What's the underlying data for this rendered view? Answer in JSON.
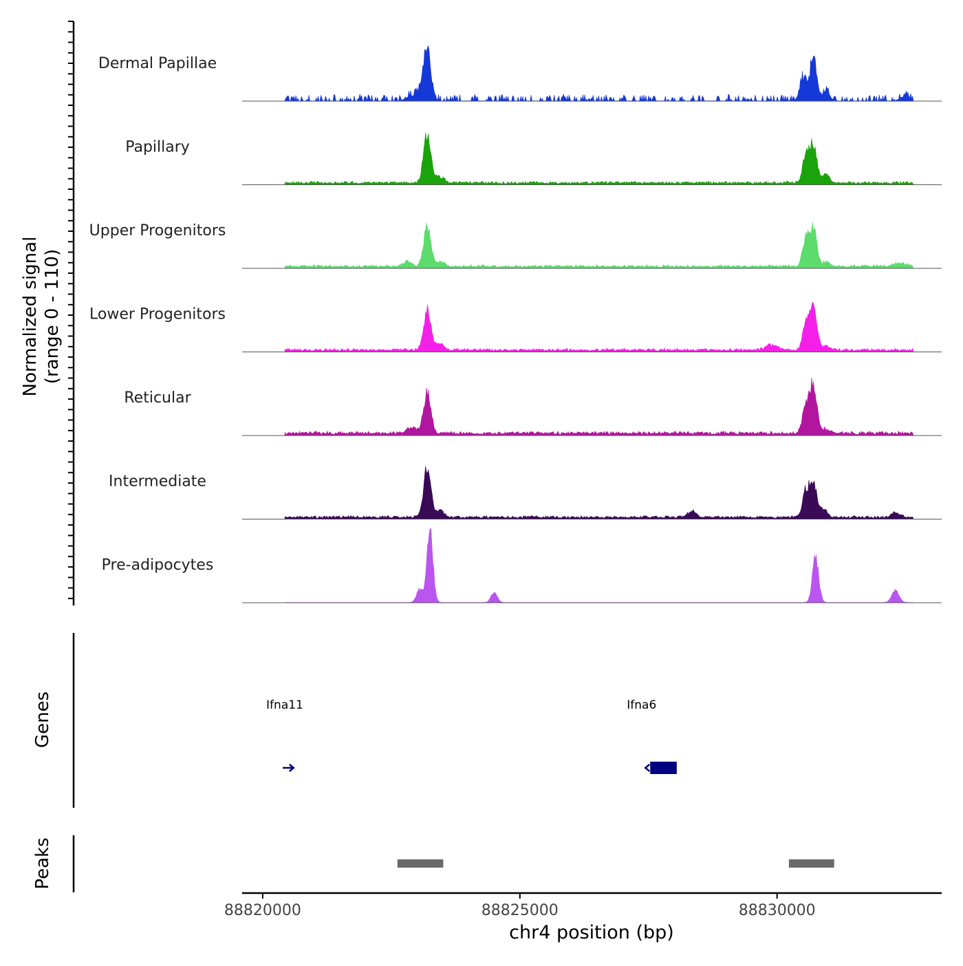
{
  "chart_data": {
    "type": "area",
    "title": "",
    "ylabel_line1": "Normalized signal",
    "ylabel_line2": "(range 0 - 110)",
    "xlabel": "chr4 position (bp)",
    "xlim": [
      88819600,
      88833200
    ],
    "ylim": [
      0,
      110
    ],
    "x_ticks": [
      {
        "value": 88820000,
        "label": "88820000"
      },
      {
        "value": 88825000,
        "label": "88825000"
      },
      {
        "value": 88830000,
        "label": "88830000"
      }
    ],
    "signal_tracks_range": [
      88820430,
      88832650
    ],
    "series": [
      {
        "name": "Dermal Papillae",
        "color": "#1538d8",
        "peaks": [
          [
            88823200,
            100,
            70
          ],
          [
            88823060,
            15,
            90
          ],
          [
            88822850,
            8,
            80
          ],
          [
            88830700,
            80,
            70
          ],
          [
            88830500,
            45,
            60
          ],
          [
            88830950,
            18,
            70
          ],
          [
            88832500,
            10,
            90
          ]
        ],
        "baseline": 6,
        "spiky": true
      },
      {
        "name": "Papillary",
        "color": "#1aa30a",
        "peaks": [
          [
            88823200,
            100,
            70
          ],
          [
            88823450,
            12,
            80
          ],
          [
            88830700,
            78,
            70
          ],
          [
            88830550,
            50,
            60
          ],
          [
            88830950,
            18,
            70
          ]
        ],
        "baseline": 4,
        "spiky": false
      },
      {
        "name": "Upper Progenitors",
        "color": "#5cdc6c",
        "peaks": [
          [
            88823200,
            82,
            70
          ],
          [
            88822800,
            10,
            80
          ],
          [
            88823450,
            8,
            80
          ],
          [
            88830700,
            78,
            70
          ],
          [
            88830550,
            50,
            60
          ],
          [
            88830950,
            8,
            80
          ],
          [
            88832400,
            6,
            120
          ]
        ],
        "baseline": 4,
        "spiky": false
      },
      {
        "name": "Lower Progenitors",
        "color": "#f520e8",
        "peaks": [
          [
            88823200,
            80,
            70
          ],
          [
            88823450,
            12,
            80
          ],
          [
            88830700,
            90,
            70
          ],
          [
            88830550,
            45,
            60
          ],
          [
            88829900,
            10,
            120
          ],
          [
            88830950,
            8,
            80
          ]
        ],
        "baseline": 4,
        "spiky": false
      },
      {
        "name": "Reticular",
        "color": "#b2169f",
        "peaks": [
          [
            88823200,
            80,
            70
          ],
          [
            88822900,
            10,
            120
          ],
          [
            88830700,
            100,
            70
          ],
          [
            88830550,
            50,
            60
          ],
          [
            88830950,
            8,
            80
          ]
        ],
        "baseline": 5,
        "spiky": false
      },
      {
        "name": "Intermediate",
        "color": "#3a0a57",
        "peaks": [
          [
            88823200,
            105,
            70
          ],
          [
            88823450,
            12,
            80
          ],
          [
            88830700,
            75,
            70
          ],
          [
            88830550,
            50,
            60
          ],
          [
            88828350,
            12,
            80
          ],
          [
            88830900,
            16,
            70
          ],
          [
            88832300,
            10,
            80
          ]
        ],
        "baseline": 4,
        "spiky": false
      },
      {
        "name": "Pre-adipocytes",
        "color": "#bb55ef",
        "peaks": [
          [
            88823250,
            140,
            60
          ],
          [
            88823050,
            25,
            60
          ],
          [
            88824500,
            20,
            60
          ],
          [
            88830750,
            90,
            60
          ],
          [
            88832300,
            25,
            70
          ]
        ],
        "baseline": 0,
        "spiky": true
      }
    ],
    "genes": [
      {
        "name": "Ifna11",
        "start": 88820470,
        "end": 88820560,
        "strand": "+"
      },
      {
        "name": "Ifna6",
        "start": 88827480,
        "end": 88828050,
        "strand": "-"
      }
    ],
    "genes_axis_label": "Genes",
    "peaks_axis_label": "Peaks",
    "peak_regions": [
      {
        "start": 88822620,
        "end": 88823510
      },
      {
        "start": 88830230,
        "end": 88831110
      }
    ],
    "colors": {
      "gene": "#000080",
      "peak_region": "#6a6a6a",
      "axis": "#000000",
      "baseline": "#555555"
    }
  }
}
